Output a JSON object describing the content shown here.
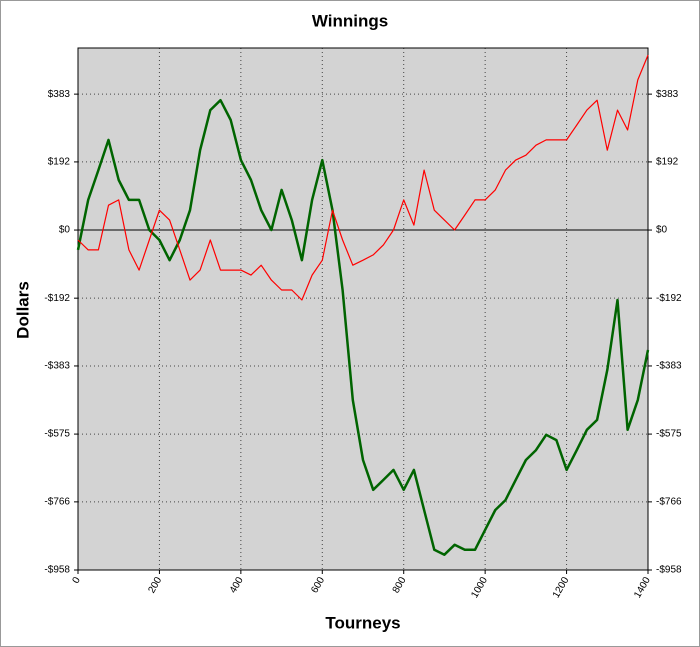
{
  "chart_data": {
    "type": "line",
    "title": "Winnings",
    "xlabel": "Tourneys",
    "ylabel": "Dollars",
    "x": [
      0,
      25,
      50,
      75,
      100,
      125,
      150,
      175,
      200,
      225,
      250,
      275,
      300,
      325,
      350,
      375,
      400,
      425,
      450,
      475,
      500,
      525,
      550,
      575,
      600,
      625,
      650,
      675,
      700,
      725,
      750,
      775,
      800,
      825,
      850,
      875,
      900,
      925,
      950,
      975,
      1000,
      1025,
      1050,
      1075,
      1100,
      1125,
      1150,
      1175,
      1200,
      1225,
      1250,
      1275,
      1300,
      1325,
      1350,
      1375,
      1400
    ],
    "series": [
      {
        "color": "#006400",
        "values": [
          -56,
          85,
          169,
          254,
          141,
          85,
          85,
          0,
          -28,
          -85,
          -28,
          56,
          225,
          338,
          366,
          310,
          197,
          141,
          56,
          0,
          113,
          28,
          -85,
          85,
          197,
          56,
          -169,
          -479,
          -648,
          -732,
          -704,
          -676,
          -732,
          -676,
          -789,
          -901,
          -915,
          -887,
          -901,
          -901,
          -845,
          -789,
          -761,
          -704,
          -648,
          -620,
          -577,
          -592,
          -676,
          -620,
          -563,
          -535,
          -394,
          -197,
          -563,
          -479,
          -338
        ]
      },
      {
        "color": "#ff0000",
        "values": [
          -28,
          -56,
          -56,
          70,
          85,
          -56,
          -113,
          -28,
          56,
          28,
          -56,
          -141,
          -113,
          -28,
          -113,
          -113,
          -113,
          -127,
          -99,
          -141,
          -169,
          -169,
          -197,
          -127,
          -85,
          56,
          -28,
          -99,
          -85,
          -70,
          -42,
          0,
          85,
          14,
          169,
          56,
          28,
          0,
          42,
          85,
          85,
          113,
          169,
          197,
          211,
          239,
          254,
          254,
          254,
          296,
          338,
          366,
          225,
          338,
          282,
          423,
          493
        ]
      }
    ],
    "xlim": [
      0,
      1400
    ],
    "xticks": [
      0,
      200,
      400,
      600,
      800,
      1000,
      1200,
      1400
    ],
    "ylim": [
      -958,
      513
    ],
    "yticks": [
      {
        "value": 383,
        "label": "$383"
      },
      {
        "value": 192,
        "label": "$192"
      },
      {
        "value": 0,
        "label": "$0"
      },
      {
        "value": -192,
        "label": "-$192"
      },
      {
        "value": -383,
        "label": "-$383"
      },
      {
        "value": -575,
        "label": "-$575"
      },
      {
        "value": -766,
        "label": "-$766"
      },
      {
        "value": -958,
        "label": "-$958"
      }
    ],
    "y2lim": [
      -958,
      513
    ],
    "y2ticks": [
      {
        "value": 383,
        "label": "$383"
      },
      {
        "value": 192,
        "label": "$192"
      },
      {
        "value": 0,
        "label": "$0"
      },
      {
        "value": -192,
        "label": "-$192"
      },
      {
        "value": -383,
        "label": "-$383"
      },
      {
        "value": -575,
        "label": "-$575"
      },
      {
        "value": -766,
        "label": "-$766"
      },
      {
        "value": -958,
        "label": "-$958"
      }
    ],
    "grid": true,
    "plot_background": "#d3d3d3"
  }
}
